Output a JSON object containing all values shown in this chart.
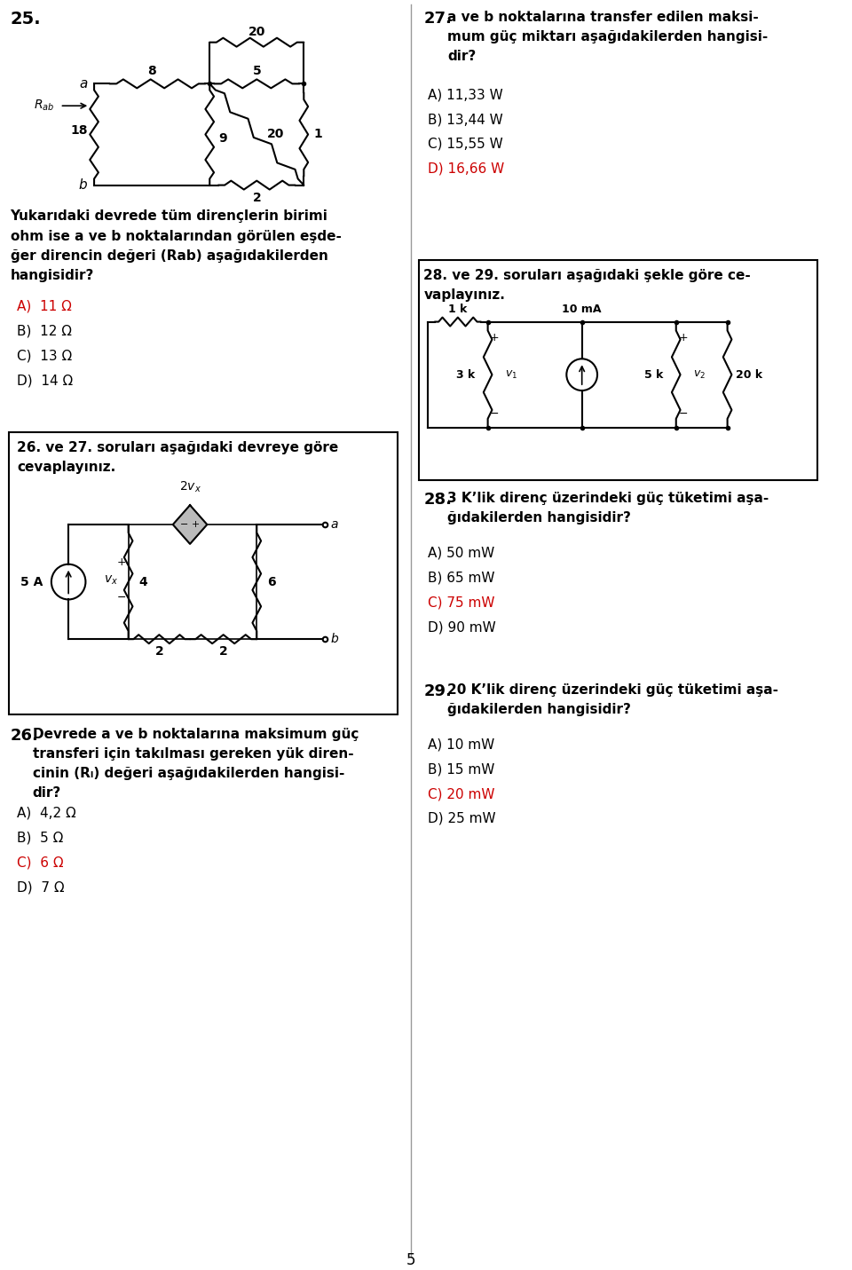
{
  "page_number": "5",
  "bg": "#ffffff",
  "black": "#000000",
  "red": "#cc0000",
  "q25_label": "25.",
  "q25_body": "Yukarıdaki devrede tüm dirençlerin birimi\nohm ise a ve b noktalarından görülen eşde-\nğer direncin değeri (Rab) aşağıdakilerden\nhangisidir?",
  "q25_opts": [
    "A)  11 Ω",
    "B)  12 Ω",
    "C)  13 Ω",
    "D)  14 Ω"
  ],
  "q25_correct": 0,
  "q2627_header": "26. ve 27. soruları aşağıdaki devreye göre\ncevaplayınız.",
  "q26_label": "26.",
  "q26_body": "Devrede a ve b noktalarına maksimum güç\ntransferi için takılması gereken yük diren-\ncinin (Rₗ) değeri aşağıdakilerden hangisi-\ndir?",
  "q26_opts": [
    "A)  4,2 Ω",
    "B)  5 Ω",
    "C)  6 Ω",
    "D)  7 Ω"
  ],
  "q26_correct": 2,
  "q27_label": "27.",
  "q27_body": "a ve b noktalarına transfer edilen maksi-\nmum güç miktarı aşağıdakilerden hangisi-\ndir?",
  "q27_opts": [
    "A) 11,33 W",
    "B) 13,44 W",
    "C) 15,55 W",
    "D) 16,66 W"
  ],
  "q27_correct": 3,
  "q2829_header": "28. ve 29. soruları aşağıdaki şekle göre ce-\nvaplayınız.",
  "q28_label": "28.",
  "q28_body": "3 K’lik direnç üzerindeki güç tüketimi aşa-\nğıdakilerden hangisidir?",
  "q28_opts": [
    "A) 50 mW",
    "B) 65 mW",
    "C) 75 mW",
    "D) 90 mW"
  ],
  "q28_correct": 2,
  "q29_label": "29.",
  "q29_body": "20 K’lik direnç üzerindeki güç tüketimi aşa-\nğıdakilerden hangisidir?",
  "q29_opts": [
    "A) 10 mW",
    "B) 15 mW",
    "C) 20 mW",
    "D) 25 mW"
  ],
  "q29_correct": 2
}
